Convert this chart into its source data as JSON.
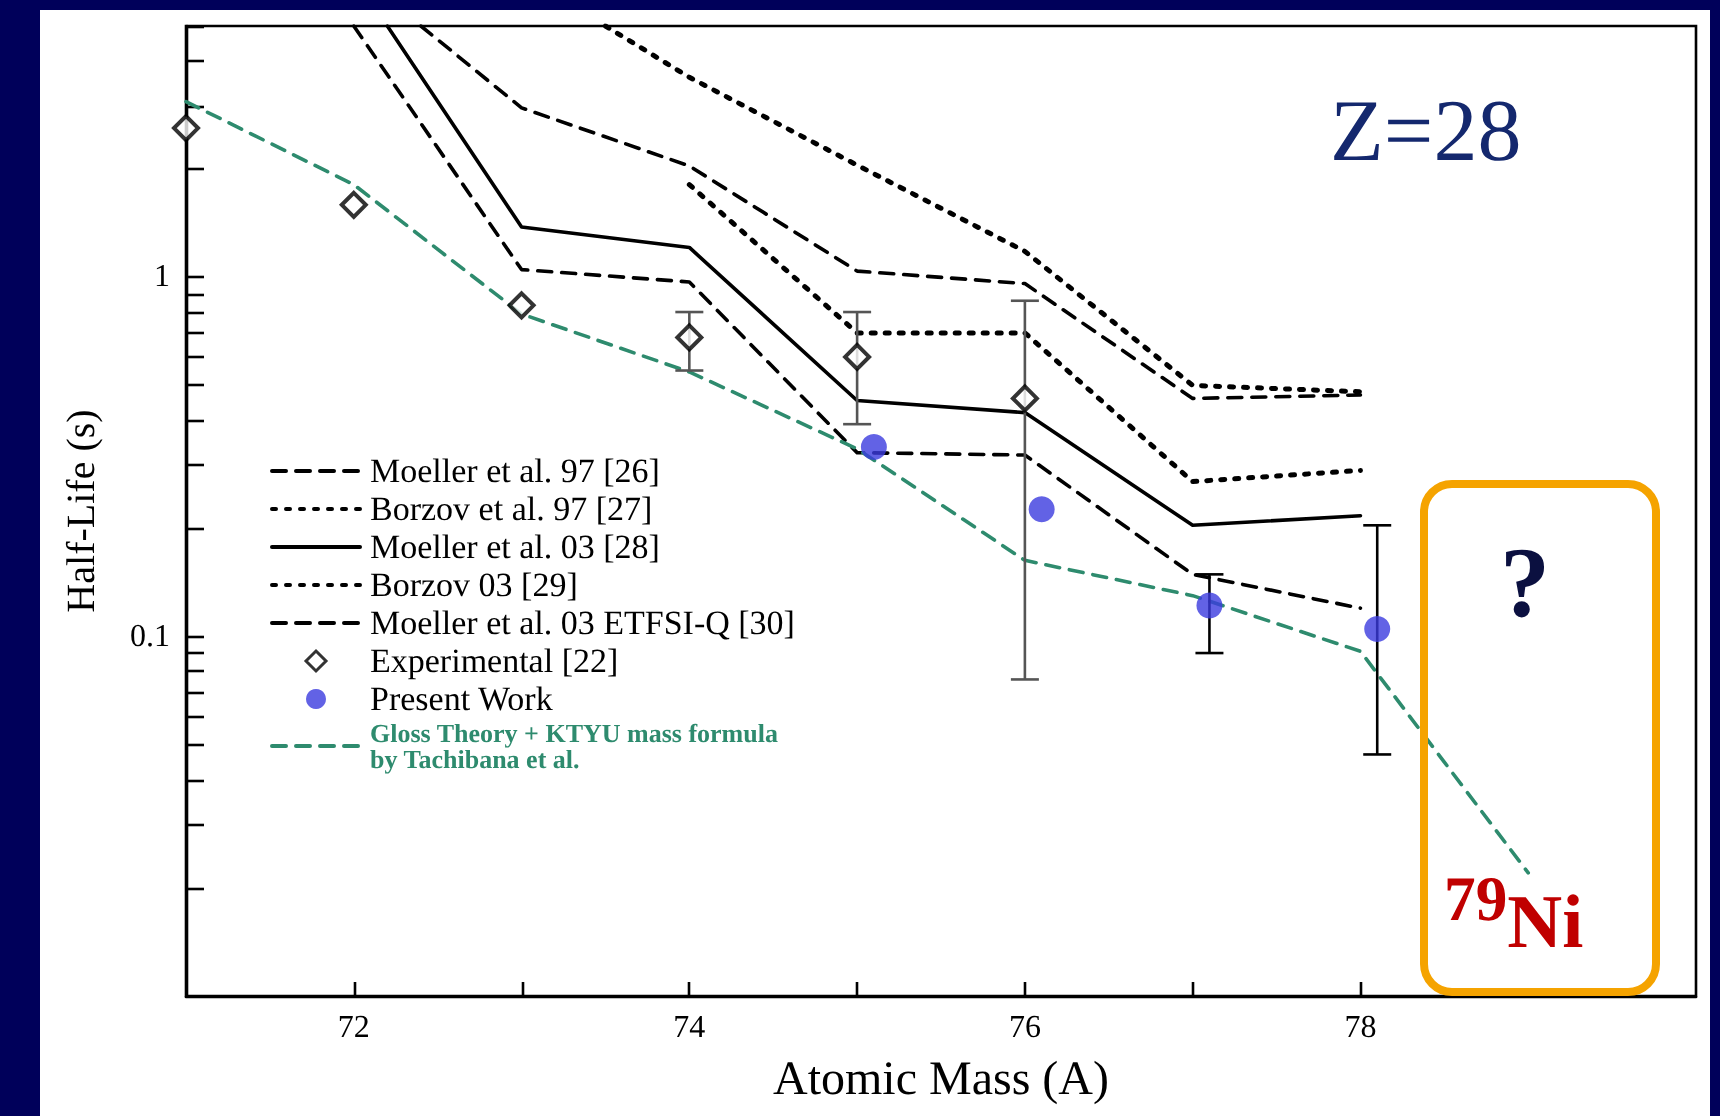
{
  "chart_data": {
    "type": "line",
    "xlabel": "Atomic Mass (A)",
    "ylabel": "Half-Life (s)",
    "xlim": [
      71,
      80
    ],
    "xticks": [
      72,
      {
        "value": 73,
        "label": null
      },
      74,
      {
        "value": 75,
        "label": null
      },
      76,
      {
        "value": 77,
        "label": null
      },
      78
    ],
    "ylim": [
      0.01,
      5
    ],
    "log": true,
    "yticks": [
      {
        "value": 0.02,
        "label": null
      },
      {
        "value": 0.03,
        "label": null
      },
      {
        "value": 0.04,
        "label": null
      },
      {
        "value": 0.05,
        "label": null
      },
      {
        "value": 0.06,
        "label": null
      },
      {
        "value": 0.07,
        "label": null
      },
      {
        "value": 0.08,
        "label": null
      },
      {
        "value": 0.09,
        "label": null
      },
      0.1,
      {
        "value": 0.2,
        "label": null
      },
      {
        "value": 0.3,
        "label": null
      },
      {
        "value": 0.4,
        "label": null
      },
      {
        "value": 0.5,
        "label": null
      },
      {
        "value": 0.6,
        "label": null
      },
      {
        "value": 0.7,
        "label": null
      },
      {
        "value": 0.8,
        "label": null
      },
      {
        "value": 0.9,
        "label": null
      },
      1,
      {
        "value": 2,
        "label": null
      },
      {
        "value": 3,
        "label": null
      },
      {
        "value": 4,
        "label": null
      },
      {
        "value": 5,
        "label": null
      }
    ],
    "grid": false,
    "legend": "left",
    "annotations": [
      "Z=28",
      "?",
      "$^{79}$Ni"
    ],
    "series": [
      {
        "name": "Moeller et al. 97 [26]",
        "type": "line",
        "color": "#000000",
        "line_style": "dashed",
        "marker": "none",
        "x": [
          72.4,
          73,
          74,
          75,
          76,
          77,
          78
        ],
        "values": [
          5,
          2.96,
          2.04,
          1.04,
          0.96,
          0.46,
          0.47
        ]
      },
      {
        "name": "Borzov et al. 97 [27]",
        "type": "line",
        "color": "#000000",
        "line_style": "dotted",
        "marker": "none",
        "x": [
          73.5,
          74,
          75,
          76,
          77,
          78
        ],
        "values": [
          5,
          3.6,
          2.05,
          1.18,
          0.5,
          0.48
        ]
      },
      {
        "name": "Moeller et al. 03 [28]",
        "type": "line",
        "color": "#000000",
        "line_style": "solid",
        "marker": "none",
        "x": [
          72.2,
          73,
          74,
          75,
          76,
          77,
          78
        ],
        "values": [
          5,
          1.38,
          1.21,
          0.454,
          0.42,
          0.204,
          0.217
        ]
      },
      {
        "name": "Borzov 03 [29]",
        "type": "line",
        "color": "#000000",
        "line_style": "dotted",
        "marker": "none",
        "x": [
          74,
          75,
          76,
          77,
          78
        ],
        "values": [
          1.81,
          0.7,
          0.7,
          0.27,
          0.29
        ]
      },
      {
        "name": "Moeller et al. 03 ETFSI-Q [30]",
        "type": "line",
        "color": "#000000",
        "line_style": "dashed",
        "marker": "none",
        "x": [
          72,
          73,
          74,
          75,
          76,
          77,
          78
        ],
        "values": [
          5,
          1.05,
          0.97,
          0.325,
          0.32,
          0.149,
          0.12
        ]
      },
      {
        "name": "Experimental [22]",
        "type": "scatter",
        "color": "#000000",
        "marker": "diamond",
        "x": [
          71,
          72,
          73,
          74,
          75,
          76
        ],
        "values": [
          2.6,
          1.59,
          0.835,
          0.68,
          0.6,
          0.46
        ],
        "errors": [
          null,
          null,
          null,
          [
            0.55,
            0.8
          ],
          [
            0.39,
            0.8
          ],
          [
            0.076,
            0.86
          ]
        ]
      },
      {
        "name": "Present Work",
        "type": "scatter",
        "color": "#3b3bdf",
        "marker": "circle",
        "x": [
          75.1,
          76.1,
          77.1,
          78.1
        ],
        "values": [
          0.337,
          0.226,
          0.122,
          0.105
        ],
        "errors": [
          null,
          null,
          [
            0.09,
            0.149
          ],
          [
            0.047,
            0.204
          ]
        ]
      },
      {
        "name": "Gloss Theory + KTYU mass formula\nby Tachibana et al.",
        "type": "line",
        "color": "#2e8b6e",
        "line_style": "dashed",
        "marker": "none",
        "x": [
          71,
          72,
          73,
          74,
          75,
          76,
          77,
          78,
          79
        ],
        "values": [
          3.08,
          1.81,
          0.79,
          0.545,
          0.333,
          0.163,
          0.13,
          0.091,
          0.022
        ]
      }
    ]
  }
}
